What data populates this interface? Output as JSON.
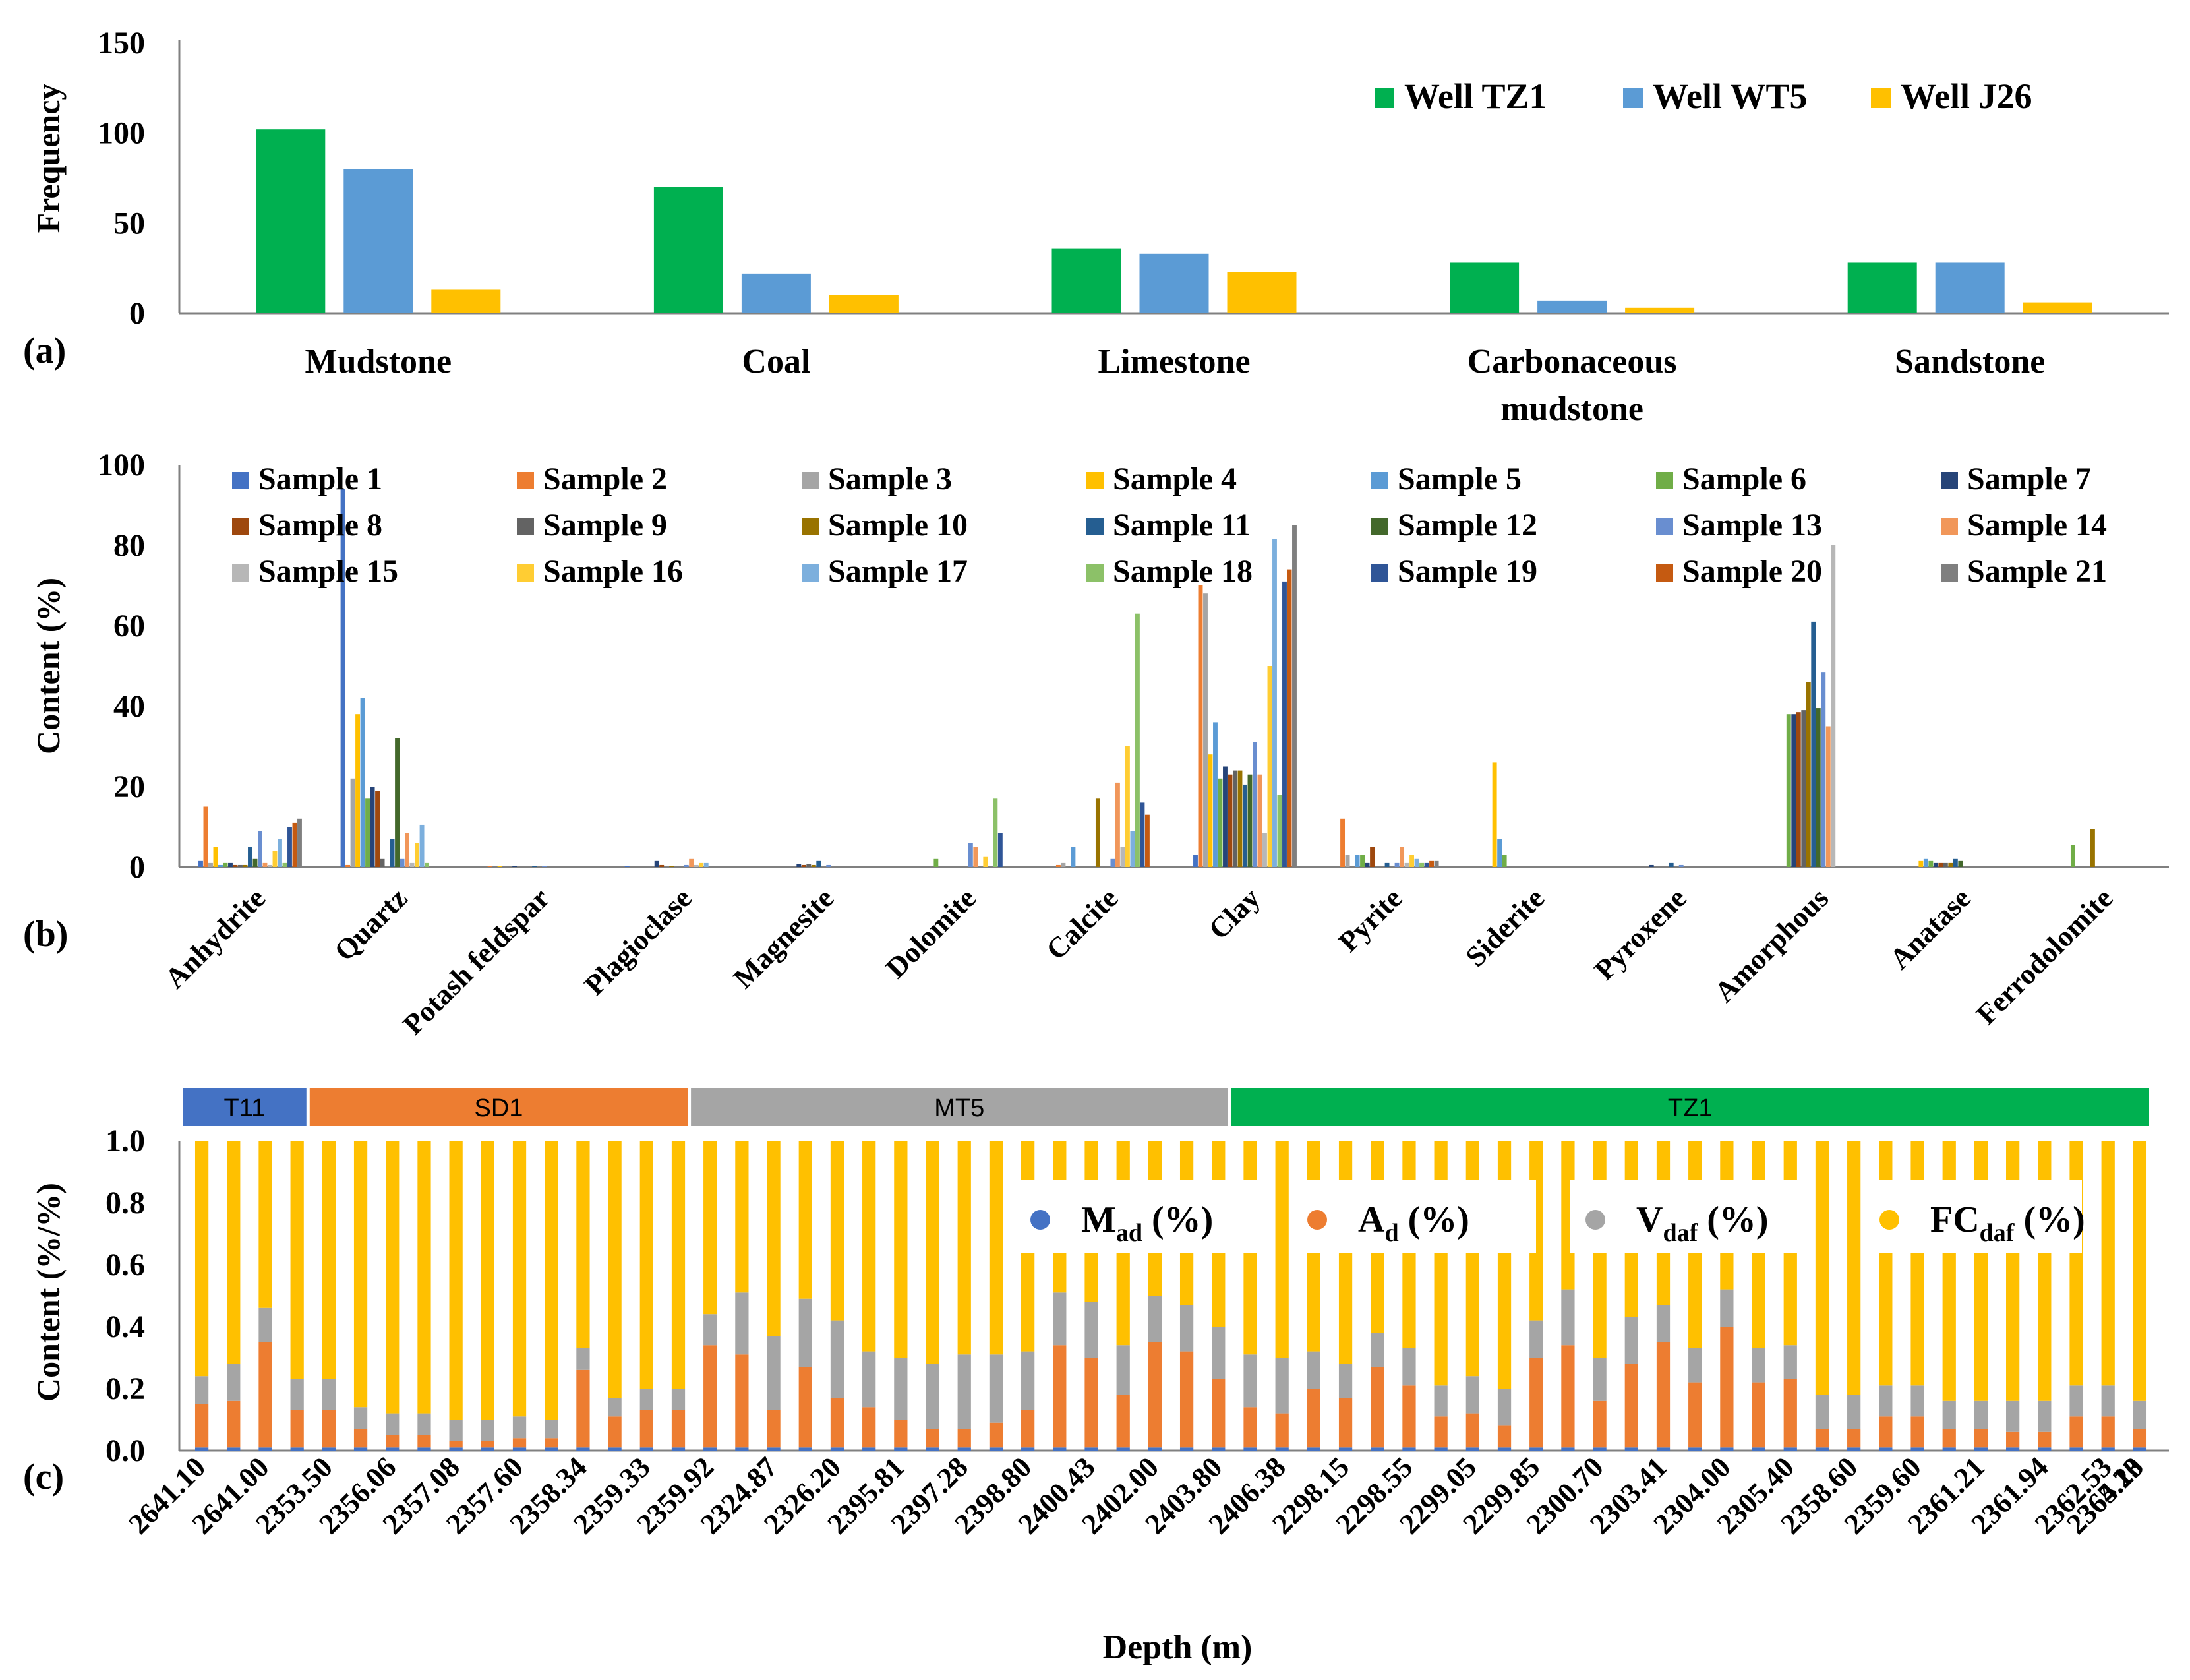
{
  "chart_data": [
    {
      "panel": "a",
      "panel_label": "(a)",
      "type": "bar",
      "ylabel": "Frequency",
      "ylim": [
        0,
        150
      ],
      "yticks": [
        0,
        50,
        100,
        150
      ],
      "categories": [
        "Mudstone",
        "Coal",
        "Limestone",
        "Carbonaceous mudstone",
        "Sandstone"
      ],
      "series": [
        {
          "name": "Well TZ1",
          "color": "#00b050",
          "values": [
            102,
            70,
            36,
            28,
            28
          ]
        },
        {
          "name": "Well WT5",
          "color": "#5b9bd5",
          "values": [
            80,
            22,
            33,
            7,
            28
          ]
        },
        {
          "name": "Well J26",
          "color": "#ffc000",
          "values": [
            13,
            10,
            23,
            3,
            6
          ]
        }
      ],
      "legend": "top-right"
    },
    {
      "panel": "b",
      "panel_label": "(b)",
      "type": "bar",
      "ylabel": "Content (%)",
      "ylim": [
        0,
        100
      ],
      "yticks": [
        0,
        20,
        40,
        60,
        80,
        100
      ],
      "categories": [
        "Anhydrite",
        "Quartz",
        "Potash feldspar",
        "Plagioclase",
        "Magnesite",
        "Dolomite",
        "Calcite",
        "Clay",
        "Pyrite",
        "Siderite",
        "Pyroxene",
        "Amorphous",
        "Anatase",
        "Ferrodolomite"
      ],
      "series": [
        {
          "name": "Sample 1",
          "color": "#4472c4",
          "values": [
            1.5,
            94,
            0,
            0.3,
            0,
            0,
            0,
            3,
            0,
            0,
            0,
            0,
            0,
            0
          ]
        },
        {
          "name": "Sample 2",
          "color": "#ed7d31",
          "values": [
            15,
            0.5,
            0.2,
            0,
            0,
            0,
            0.5,
            70,
            12,
            0,
            0,
            0,
            0,
            0
          ]
        },
        {
          "name": "Sample 3",
          "color": "#a5a5a5",
          "values": [
            1,
            22,
            0,
            0,
            0,
            0,
            1,
            68,
            3,
            0,
            0,
            0,
            0,
            0
          ]
        },
        {
          "name": "Sample 4",
          "color": "#ffc000",
          "values": [
            5,
            38,
            0.3,
            0,
            0,
            0,
            0,
            28,
            0,
            26,
            0,
            0,
            1.5,
            0
          ]
        },
        {
          "name": "Sample 5",
          "color": "#5b9bd5",
          "values": [
            0.5,
            42,
            0,
            0,
            0,
            0,
            5,
            36,
            3,
            7,
            0,
            0,
            2,
            0
          ]
        },
        {
          "name": "Sample 6",
          "color": "#70ad47",
          "values": [
            1,
            17,
            0,
            0,
            0,
            2,
            0,
            22,
            3,
            3,
            0,
            38,
            1.5,
            5.5
          ]
        },
        {
          "name": "Sample 7",
          "color": "#264478",
          "values": [
            1,
            20,
            0.3,
            1.5,
            0.7,
            0,
            0,
            25,
            1,
            0,
            0.5,
            38,
            1,
            0
          ]
        },
        {
          "name": "Sample 8",
          "color": "#9e480e",
          "values": [
            0.5,
            19,
            0,
            0.5,
            0.5,
            0,
            0,
            23,
            5,
            0,
            0,
            38.5,
            1,
            0
          ]
        },
        {
          "name": "Sample 9",
          "color": "#636363",
          "values": [
            0.5,
            2,
            0,
            0,
            0.7,
            0,
            0,
            24,
            0,
            0,
            0,
            39,
            1,
            0
          ]
        },
        {
          "name": "Sample 10",
          "color": "#997300",
          "values": [
            0.5,
            0,
            0,
            0.3,
            0.5,
            0,
            17,
            24,
            0,
            0,
            0,
            46,
            1,
            9.5
          ]
        },
        {
          "name": "Sample 11",
          "color": "#255e91",
          "values": [
            5,
            7,
            0.3,
            0,
            1.5,
            0,
            0,
            20.5,
            1,
            0,
            1,
            61,
            2,
            0
          ]
        },
        {
          "name": "Sample 12",
          "color": "#43682b",
          "values": [
            2,
            32,
            0,
            0,
            0,
            0,
            0,
            23,
            0,
            0,
            0,
            39.5,
            1.5,
            0
          ]
        },
        {
          "name": "Sample 13",
          "color": "#698ed0",
          "values": [
            9,
            2,
            0.3,
            0.5,
            0.5,
            6,
            2,
            31,
            1,
            0,
            0.5,
            48.5,
            0,
            0
          ]
        },
        {
          "name": "Sample 14",
          "color": "#f1975a",
          "values": [
            1,
            8.5,
            0,
            2,
            0,
            5,
            21,
            23,
            5,
            0,
            0,
            35,
            0,
            0
          ]
        },
        {
          "name": "Sample 15",
          "color": "#b7b7b7",
          "values": [
            0.5,
            1,
            0,
            0.5,
            0,
            0,
            5,
            8.5,
            1,
            0,
            0,
            80,
            0,
            0
          ]
        },
        {
          "name": "Sample 16",
          "color": "#ffcd33",
          "values": [
            4,
            6,
            0,
            1,
            0,
            2.5,
            30,
            50,
            3,
            0,
            0,
            0,
            0,
            0
          ]
        },
        {
          "name": "Sample 17",
          "color": "#7cafdd",
          "values": [
            7,
            10.5,
            0,
            1,
            0,
            0,
            9,
            81.5,
            2,
            0,
            0,
            0,
            0,
            0
          ]
        },
        {
          "name": "Sample 18",
          "color": "#8cc168",
          "values": [
            1,
            1,
            0,
            0,
            0,
            17,
            63,
            18,
            1,
            0,
            0,
            0,
            0,
            0
          ]
        },
        {
          "name": "Sample 19",
          "color": "#2f5597",
          "values": [
            10,
            0,
            0,
            0,
            0,
            8.5,
            16,
            71,
            1,
            0,
            0,
            0,
            0,
            0
          ]
        },
        {
          "name": "Sample 20",
          "color": "#c55a11",
          "values": [
            11,
            0,
            0,
            0,
            0,
            0,
            13,
            74,
            1.5,
            0,
            0,
            0,
            0,
            0
          ]
        },
        {
          "name": "Sample 21",
          "color": "#7f7f7f",
          "values": [
            12,
            0,
            0,
            0,
            0,
            0,
            0,
            85,
            1.5,
            0,
            0,
            0,
            0,
            0
          ]
        }
      ],
      "legend": "top"
    },
    {
      "panel": "c",
      "panel_label": "(c)",
      "type": "bar",
      "stacked": true,
      "xlabel": "Depth (m)",
      "ylabel": "Content (%/%)",
      "ylim": [
        0,
        1.0
      ],
      "yticks": [
        "0.0",
        "0.2",
        "0.4",
        "0.6",
        "0.8",
        "1.0"
      ],
      "wells": [
        {
          "name": "T11",
          "color": "#4472c4",
          "count": 4
        },
        {
          "name": "SD1",
          "color": "#ed7d31",
          "count": 12
        },
        {
          "name": "MT5",
          "color": "#a5a5a5",
          "count": 17
        },
        {
          "name": "TZ1",
          "color": "#00b050",
          "count": 29
        }
      ],
      "x_tick_labels": [
        "2641.10",
        "2641.00",
        "2353.50",
        "2356.06",
        "2357.08",
        "2357.60",
        "2358.34",
        "2359.33",
        "2359.92",
        "2324.87",
        "2326.20",
        "2395.81",
        "2397.28",
        "2398.80",
        "2400.43",
        "2402.00",
        "2403.80",
        "2406.38",
        "2298.15",
        "2298.55",
        "2299.05",
        "2299.85",
        "2300.70",
        "2303.41",
        "2304.00",
        "2305.40",
        "2358.60",
        "2359.60",
        "2361.21",
        "2361.94",
        "2362.53",
        "2364.13",
        "2365.20"
      ],
      "legend_items": [
        {
          "main": "M",
          "sub": "ad",
          "suffix": " (%)",
          "color": "#4472c4"
        },
        {
          "main": "A",
          "sub": "d",
          "suffix": " (%)",
          "color": "#ed7d31"
        },
        {
          "main": "V",
          "sub": "daf",
          "suffix": " (%)",
          "color": "#a5a5a5"
        },
        {
          "main": "FC",
          "sub": "daf",
          "suffix": " (%)",
          "color": "#ffc000"
        }
      ],
      "series": [
        {
          "name": "Mad (%)",
          "color": "#4472c4",
          "values": [
            0.01,
            0.01,
            0.01,
            0.01,
            0.01,
            0.01,
            0.01,
            0.01,
            0.01,
            0.01,
            0.01,
            0.01,
            0.01,
            0.01,
            0.01,
            0.01,
            0.01,
            0.01,
            0.01,
            0.01,
            0.01,
            0.01,
            0.01,
            0.01,
            0.01,
            0.01,
            0.01,
            0.01,
            0.01,
            0.01,
            0.01,
            0.01,
            0.01,
            0.01,
            0.01,
            0.01,
            0.01,
            0.01,
            0.01,
            0.01,
            0.01,
            0.01,
            0.01,
            0.01,
            0.01,
            0.01,
            0.01,
            0.01,
            0.01,
            0.01,
            0.01,
            0.01,
            0.01,
            0.01,
            0.01,
            0.01,
            0.01,
            0.01,
            0.01,
            0.01,
            0.01,
            0.01
          ]
        },
        {
          "name": "Ad (%)",
          "color": "#ed7d31",
          "values": [
            0.14,
            0.15,
            0.34,
            0.12,
            0.12,
            0.06,
            0.04,
            0.04,
            0.02,
            0.02,
            0.03,
            0.03,
            0.25,
            0.1,
            0.12,
            0.12,
            0.33,
            0.3,
            0.12,
            0.26,
            0.16,
            0.13,
            0.09,
            0.06,
            0.06,
            0.08,
            0.12,
            0.33,
            0.29,
            0.17,
            0.34,
            0.31,
            0.22,
            0.13,
            0.11,
            0.19,
            0.16,
            0.26,
            0.2,
            0.1,
            0.11,
            0.07,
            0.29,
            0.33,
            0.15,
            0.27,
            0.34,
            0.21,
            0.39,
            0.21,
            0.22,
            0.06,
            0.06,
            0.1,
            0.1,
            0.06,
            0.06,
            0.05,
            0.05,
            0.1,
            0.1,
            0.06
          ]
        },
        {
          "name": "Vdaf (%)",
          "color": "#a5a5a5",
          "values": [
            0.09,
            0.12,
            0.11,
            0.1,
            0.1,
            0.07,
            0.07,
            0.07,
            0.07,
            0.07,
            0.07,
            0.06,
            0.07,
            0.06,
            0.07,
            0.07,
            0.1,
            0.2,
            0.24,
            0.22,
            0.25,
            0.18,
            0.2,
            0.21,
            0.24,
            0.22,
            0.19,
            0.17,
            0.18,
            0.16,
            0.15,
            0.15,
            0.17,
            0.17,
            0.18,
            0.12,
            0.11,
            0.11,
            0.12,
            0.1,
            0.12,
            0.12,
            0.12,
            0.18,
            0.14,
            0.15,
            0.12,
            0.11,
            0.12,
            0.11,
            0.11,
            0.11,
            0.11,
            0.1,
            0.1,
            0.09,
            0.09,
            0.1,
            0.1,
            0.1,
            0.1,
            0.09
          ]
        },
        {
          "name": "FCdaf (%)",
          "color": "#ffc000",
          "values": [
            0.76,
            0.72,
            0.54,
            0.77,
            0.77,
            0.86,
            0.88,
            0.88,
            0.9,
            0.9,
            0.89,
            0.9,
            0.67,
            0.83,
            0.8,
            0.8,
            0.56,
            0.49,
            0.63,
            0.51,
            0.58,
            0.68,
            0.7,
            0.72,
            0.69,
            0.69,
            0.68,
            0.49,
            0.52,
            0.66,
            0.5,
            0.53,
            0.6,
            0.69,
            0.7,
            0.68,
            0.72,
            0.62,
            0.67,
            0.79,
            0.76,
            0.8,
            0.58,
            0.48,
            0.7,
            0.57,
            0.53,
            0.67,
            0.48,
            0.67,
            0.66,
            0.82,
            0.82,
            0.79,
            0.79,
            0.84,
            0.84,
            0.84,
            0.84,
            0.79,
            0.79,
            0.84
          ]
        }
      ]
    }
  ]
}
